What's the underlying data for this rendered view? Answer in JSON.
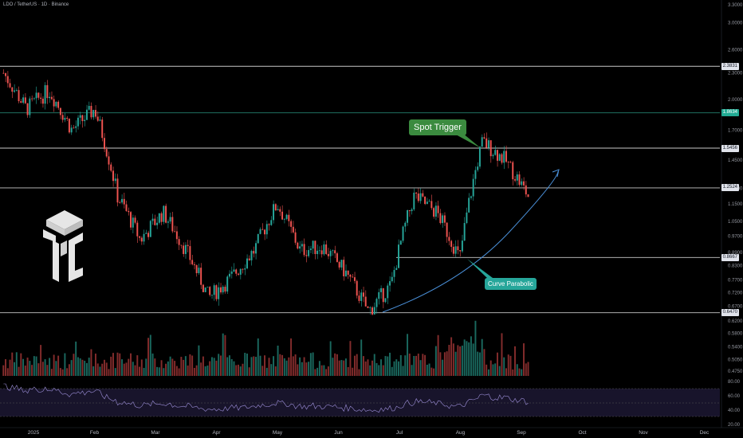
{
  "symbol_header": "LDO / TetherUS · 1D · Binance",
  "colors": {
    "bull": "#26a69a",
    "bear": "#ef5350",
    "curve": "#4a90d9",
    "level": "#d1d4dc",
    "level_teal": "#1f6f60"
  },
  "price_axis": {
    "scale": "log",
    "ticks": [
      "3.3000",
      "3.0000",
      "2.6000",
      "2.3000",
      "2.0000",
      "1.7000",
      "1.4500",
      "1.2500",
      "1.1500",
      "1.0500",
      "0.9700",
      "0.8900",
      "0.8300",
      "0.7700",
      "0.7200",
      "0.6700",
      "0.6200",
      "0.5800",
      "0.5400",
      "0.5050",
      "0.4750"
    ]
  },
  "price_levels": [
    {
      "label": "2.3831",
      "value": 2.3831,
      "style": "white"
    },
    {
      "label": "1.8634",
      "value": 1.8634,
      "style": "teal"
    },
    {
      "label": "1.5456",
      "value": 1.5456,
      "style": "white"
    },
    {
      "label": "1.2524",
      "value": 1.2524,
      "style": "white"
    },
    {
      "label": "0.8667",
      "value": 0.8667,
      "style": "white"
    },
    {
      "label": "0.6470",
      "value": 0.647,
      "style": "white"
    }
  ],
  "time_axis": [
    "2025",
    "Feb",
    "Mar",
    "Apr",
    "May",
    "Jun",
    "Jul",
    "Aug",
    "Sep",
    "Oct",
    "Nov",
    "Dec"
  ],
  "annotations": {
    "spot_trigger": "Spot Trigger",
    "curve_parabolic": "Curve Parabolic"
  },
  "rsi_axis": [
    "80.00",
    "60.00",
    "40.00",
    "20.00"
  ],
  "chart_data": {
    "type": "candlestick",
    "pair": "LDO / TetherUS",
    "interval": "1D",
    "exchange": "Binance",
    "anchors": [
      [
        "Jan 2025",
        2.3
      ],
      [
        "Jan mid",
        1.9
      ],
      [
        "Feb",
        2.1
      ],
      [
        "Feb mid",
        1.7
      ],
      [
        "Feb end",
        1.9
      ],
      [
        "Mar",
        1.2
      ],
      [
        "Mar mid",
        0.95
      ],
      [
        "Mar end",
        1.1
      ],
      [
        "Apr",
        0.9
      ],
      [
        "Apr mid",
        0.7
      ],
      [
        "Apr end",
        0.78
      ],
      [
        "May",
        0.9
      ],
      [
        "May mid",
        1.15
      ],
      [
        "May end",
        0.9
      ],
      [
        "Jun",
        0.92
      ],
      [
        "Jun mid",
        0.8
      ],
      [
        "Jun end",
        0.65
      ],
      [
        "Jul",
        0.75
      ],
      [
        "Jul mid",
        1.2
      ],
      [
        "Jul end",
        1.1
      ],
      [
        "Aug",
        0.86
      ],
      [
        "Aug mid",
        1.6
      ],
      [
        "Aug end",
        1.45
      ],
      [
        "Sep",
        1.2
      ]
    ]
  }
}
